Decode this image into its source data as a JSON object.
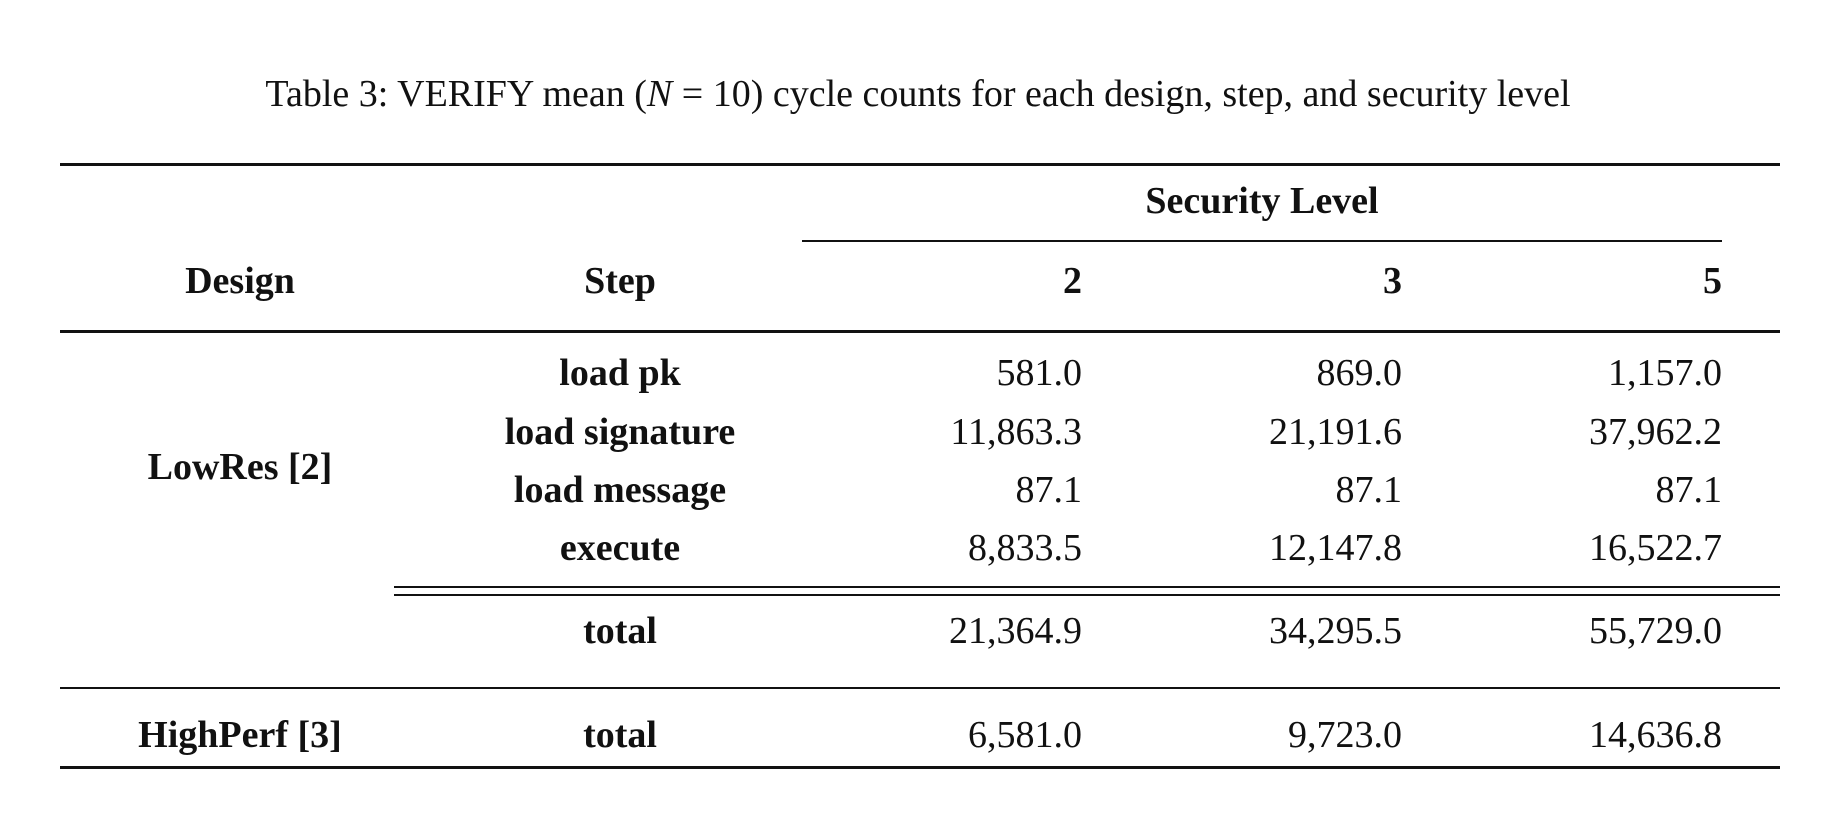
{
  "caption": {
    "prefix": "Table 3: VERIFY mean (",
    "var": "N",
    "eq": " = 10",
    "suffix": ") cycle counts for each design, step, and security level"
  },
  "header": {
    "group_label": "Security Level",
    "design_label": "Design",
    "step_label": "Step",
    "levels": [
      "2",
      "3",
      "5"
    ]
  },
  "rows": {
    "lowres": {
      "design": "LowRes [2]",
      "steps": [
        {
          "step": "load pk",
          "values": [
            "581.0",
            "869.0",
            "1,157.0"
          ]
        },
        {
          "step": "load signature",
          "values": [
            "11,863.3",
            "21,191.6",
            "37,962.2"
          ]
        },
        {
          "step": "load message",
          "values": [
            "87.1",
            "87.1",
            "87.1"
          ]
        },
        {
          "step": "execute",
          "values": [
            "8,833.5",
            "12,147.8",
            "16,522.7"
          ]
        }
      ],
      "total": {
        "step": "total",
        "values": [
          "21,364.9",
          "34,295.5",
          "55,729.0"
        ]
      }
    },
    "highperf": {
      "design": "HighPerf [3]",
      "total": {
        "step": "total",
        "values": [
          "6,581.0",
          "9,723.0",
          "14,636.8"
        ]
      }
    }
  }
}
